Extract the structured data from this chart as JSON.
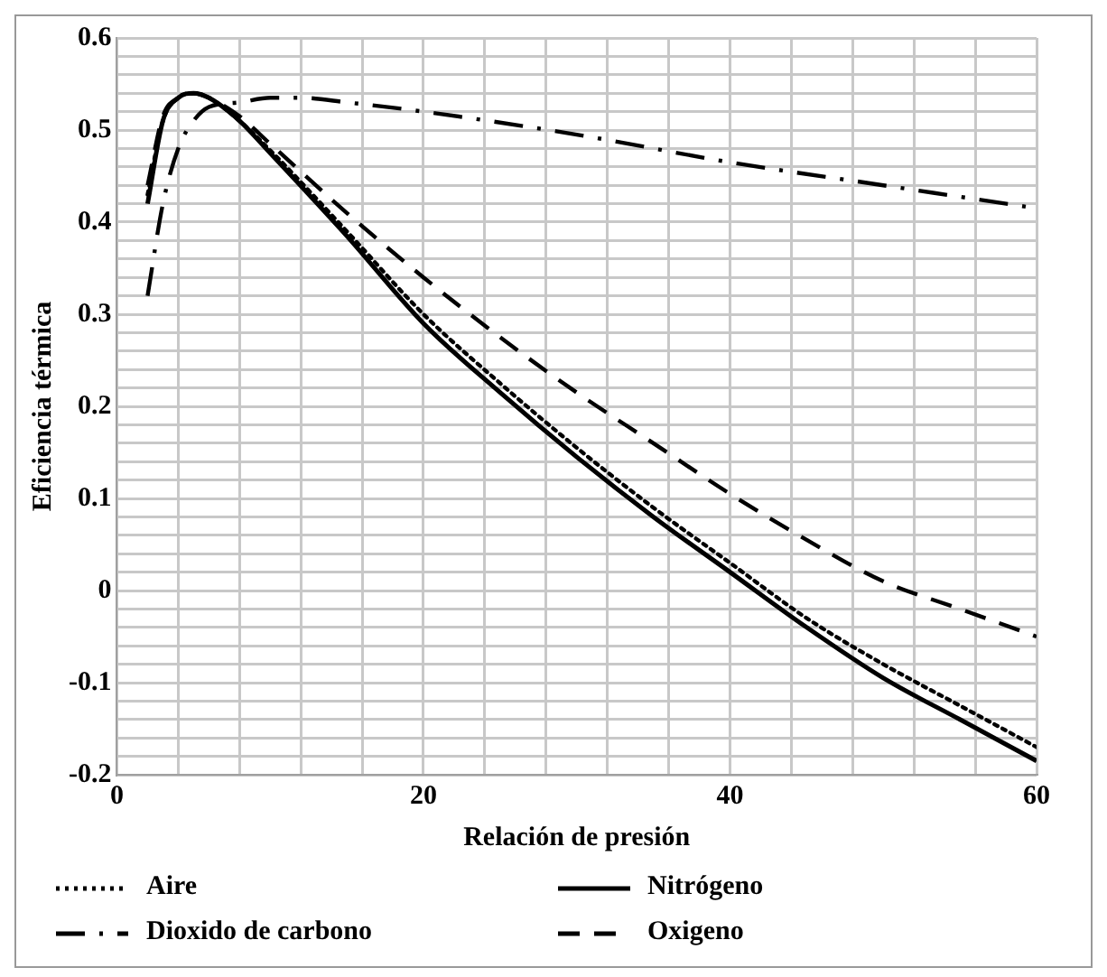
{
  "chart_data": {
    "type": "line",
    "xlabel": "Relación de presión",
    "ylabel": "Eficiencia térmica",
    "xlim": [
      0,
      60
    ],
    "ylim": [
      -0.2,
      0.6
    ],
    "xticks": [
      0,
      {
        "value": 4,
        "label": null
      },
      {
        "value": 8,
        "label": null
      },
      {
        "value": 12,
        "label": null
      },
      {
        "value": 16,
        "label": null
      },
      20,
      {
        "value": 24,
        "label": null
      },
      {
        "value": 28,
        "label": null
      },
      {
        "value": 32,
        "label": null
      },
      {
        "value": 36,
        "label": null
      },
      40,
      {
        "value": 44,
        "label": null
      },
      {
        "value": 48,
        "label": null
      },
      {
        "value": 52,
        "label": null
      },
      {
        "value": 56,
        "label": null
      },
      60
    ],
    "yticks": [
      -0.2,
      {
        "value": -0.18,
        "label": null
      },
      {
        "value": -0.16,
        "label": null
      },
      {
        "value": -0.14,
        "label": null
      },
      {
        "value": -0.12,
        "label": null
      },
      -0.1,
      {
        "value": -0.08,
        "label": null
      },
      {
        "value": -0.06,
        "label": null
      },
      {
        "value": -0.04,
        "label": null
      },
      {
        "value": -0.02,
        "label": null
      },
      0,
      {
        "value": 0.02,
        "label": null
      },
      {
        "value": 0.04,
        "label": null
      },
      {
        "value": 0.06,
        "label": null
      },
      {
        "value": 0.08,
        "label": null
      },
      0.1,
      {
        "value": 0.12,
        "label": null
      },
      {
        "value": 0.14,
        "label": null
      },
      {
        "value": 0.16,
        "label": null
      },
      {
        "value": 0.18,
        "label": null
      },
      0.2,
      {
        "value": 0.22,
        "label": null
      },
      {
        "value": 0.24,
        "label": null
      },
      {
        "value": 0.26,
        "label": null
      },
      {
        "value": 0.28,
        "label": null
      },
      0.3,
      {
        "value": 0.32,
        "label": null
      },
      {
        "value": 0.34,
        "label": null
      },
      {
        "value": 0.36,
        "label": null
      },
      {
        "value": 0.38,
        "label": null
      },
      0.4,
      {
        "value": 0.42,
        "label": null
      },
      {
        "value": 0.44,
        "label": null
      },
      {
        "value": 0.46,
        "label": null
      },
      {
        "value": 0.48,
        "label": null
      },
      0.5,
      {
        "value": 0.52,
        "label": null
      },
      {
        "value": 0.54,
        "label": null
      },
      {
        "value": 0.56,
        "label": null
      },
      {
        "value": 0.58,
        "label": null
      },
      0.6
    ],
    "grid": true,
    "legend": "bottom",
    "marker": "none",
    "series": [
      {
        "name": "Aire",
        "color": "#000000",
        "line_style": "dotted",
        "x": [
          2,
          3,
          4,
          5,
          6,
          8,
          10,
          15,
          20,
          25,
          30,
          35,
          40,
          45,
          50,
          55,
          60
        ],
        "values": [
          0.43,
          0.51,
          0.535,
          0.54,
          0.535,
          0.51,
          0.478,
          0.39,
          0.3,
          0.225,
          0.155,
          0.09,
          0.03,
          -0.03,
          -0.08,
          -0.125,
          -0.17
        ]
      },
      {
        "name": "Nitrógeno",
        "color": "#000000",
        "line_style": "solid",
        "x": [
          2,
          3,
          4,
          5,
          6,
          8,
          10,
          15,
          20,
          25,
          30,
          35,
          40,
          45,
          50,
          55,
          60
        ],
        "values": [
          0.42,
          0.51,
          0.535,
          0.54,
          0.535,
          0.51,
          0.475,
          0.385,
          0.29,
          0.215,
          0.145,
          0.08,
          0.02,
          -0.04,
          -0.095,
          -0.14,
          -0.185
        ]
      },
      {
        "name": "Dioxido de carbono",
        "color": "#000000",
        "line_style": "dashdot",
        "x": [
          2,
          3,
          4,
          5,
          6,
          8,
          10,
          12,
          15,
          20,
          30,
          40,
          50,
          60
        ],
        "values": [
          0.32,
          0.42,
          0.48,
          0.51,
          0.525,
          0.53,
          0.535,
          0.535,
          0.53,
          0.52,
          0.495,
          0.465,
          0.44,
          0.415
        ]
      },
      {
        "name": "Oxigeno",
        "color": "#000000",
        "line_style": "dashed",
        "x": [
          2,
          3,
          4,
          5,
          6,
          8,
          10,
          15,
          20,
          25,
          30,
          35,
          40,
          45,
          50,
          55,
          60
        ],
        "values": [
          0.44,
          0.515,
          0.535,
          0.54,
          0.535,
          0.515,
          0.485,
          0.41,
          0.34,
          0.275,
          0.215,
          0.16,
          0.105,
          0.055,
          0.01,
          -0.02,
          -0.05
        ]
      }
    ]
  }
}
